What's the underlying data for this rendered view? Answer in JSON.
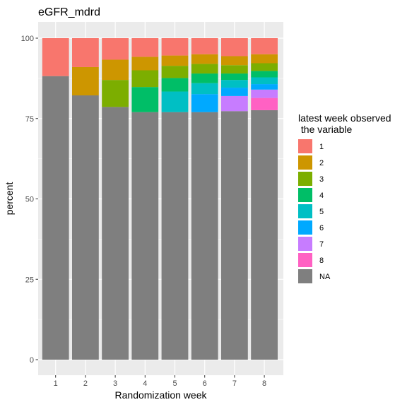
{
  "chart_data": {
    "type": "bar",
    "stacked": true,
    "title": "eGFR_mdrd",
    "xlabel": "Randomization week",
    "ylabel": "percent",
    "categories": [
      "1",
      "2",
      "3",
      "4",
      "5",
      "6",
      "7",
      "8"
    ],
    "ylim": [
      0,
      100
    ],
    "yticks": [
      "0",
      "25",
      "50",
      "75",
      "100"
    ],
    "legend_title": "latest week observed\n the variable",
    "legend_position": "right",
    "grid": true,
    "background": "#ebebeb",
    "series": [
      {
        "name": "NA",
        "color": "#7f7f7f",
        "values": [
          88.2,
          82.2,
          78.6,
          77.0,
          77.0,
          77.0,
          77.3,
          77.6
        ]
      },
      {
        "name": "8",
        "color": "#ff61c3",
        "values": [
          0,
          0,
          0,
          0,
          0,
          0,
          0,
          3.8
        ]
      },
      {
        "name": "7",
        "color": "#c77cff",
        "values": [
          0,
          0,
          0,
          0,
          0,
          0,
          4.7,
          2.6
        ]
      },
      {
        "name": "6",
        "color": "#00a9ff",
        "values": [
          0,
          0,
          0,
          0,
          0,
          5.6,
          2.6,
          1.7
        ]
      },
      {
        "name": "5",
        "color": "#00bfc4",
        "values": [
          0,
          0,
          0,
          0,
          6.4,
          3.4,
          2.4,
          2.1
        ]
      },
      {
        "name": "4",
        "color": "#00be67",
        "values": [
          0,
          0,
          0,
          7.8,
          4.2,
          3.0,
          2.0,
          2.0
        ]
      },
      {
        "name": "3",
        "color": "#7cae00",
        "values": [
          0,
          0,
          8.4,
          5.2,
          3.8,
          3.0,
          2.6,
          2.4
        ]
      },
      {
        "name": "2",
        "color": "#cd9600",
        "values": [
          0,
          8.8,
          6.3,
          4.2,
          3.2,
          3.0,
          2.8,
          2.8
        ]
      },
      {
        "name": "1",
        "color": "#f8766d",
        "values": [
          11.8,
          9.0,
          6.7,
          5.8,
          5.4,
          5.0,
          5.6,
          5.0
        ]
      }
    ],
    "legend_order": [
      "1",
      "2",
      "3",
      "4",
      "5",
      "6",
      "7",
      "8",
      "NA"
    ]
  }
}
